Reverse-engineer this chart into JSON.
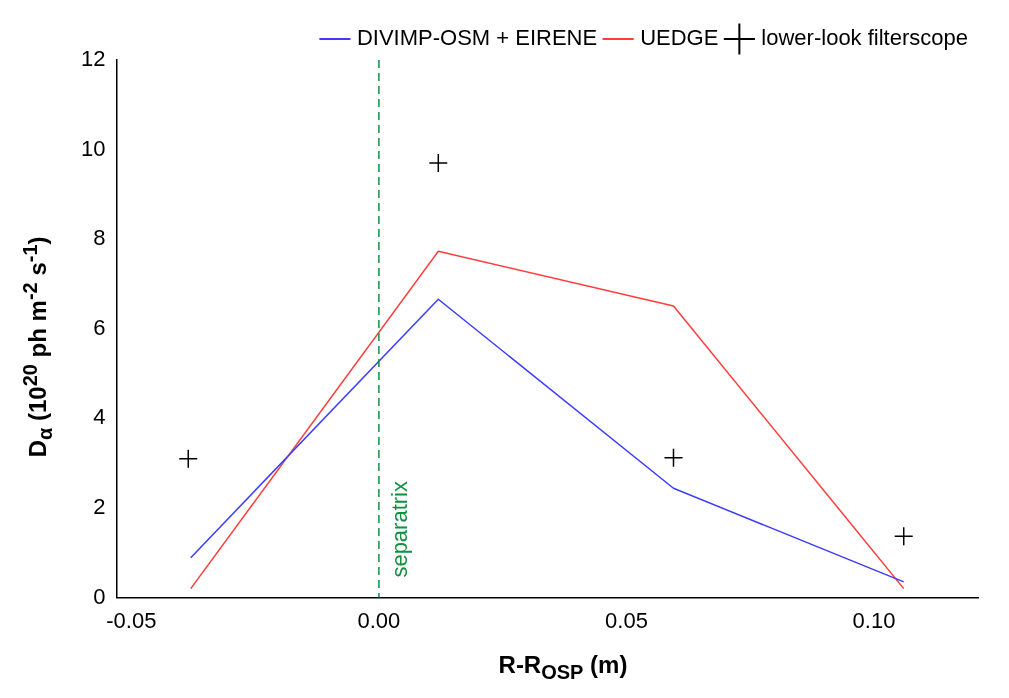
{
  "chart_data": {
    "type": "line",
    "xlabel": "R-R$_{OSP}$ (m)",
    "ylabel": "D$_{α}$ (10$^{20}$ ph m$^{-2}$ s$^{-1}$)",
    "xlim": [
      -0.053,
      0.121
    ],
    "xticks": [
      {
        "value": -0.05,
        "label": "-0.05"
      },
      {
        "value": 0,
        "label": "0.00"
      },
      {
        "value": 0.05,
        "label": "0.05"
      },
      {
        "value": 0.1,
        "label": "0.10"
      }
    ],
    "ylim": [
      0,
      12
    ],
    "yticks": [
      0,
      2,
      4,
      6,
      8,
      10,
      12
    ],
    "grid": false,
    "legend": "top right",
    "marker": "none",
    "line_style": "solid",
    "series": [
      {
        "name": "DIVIMP-OSM + EIRENE",
        "color": "#3c3cff",
        "x": [
          -0.038,
          0.012,
          0.0595,
          0.106
        ],
        "values": [
          0.89,
          6.66,
          2.44,
          0.35
        ]
      },
      {
        "name": "UEDGE",
        "color": "#ff3c3c",
        "x": [
          -0.038,
          0.012,
          0.0595,
          0.106
        ],
        "values": [
          0.2,
          7.73,
          6.51,
          0.2
        ]
      },
      {
        "name": "lower-look filterscope",
        "type": "scatter",
        "marker": "cross",
        "color": "#000000",
        "x": [
          -0.0385,
          0.012,
          0.0595,
          0.106
        ],
        "values": [
          3.1,
          9.7,
          3.12,
          1.37
        ]
      }
    ],
    "ref_lines": [
      {
        "axis": "x",
        "value": 0,
        "label": "separatrix",
        "color": "#109040",
        "line_style": "dashed"
      }
    ]
  }
}
